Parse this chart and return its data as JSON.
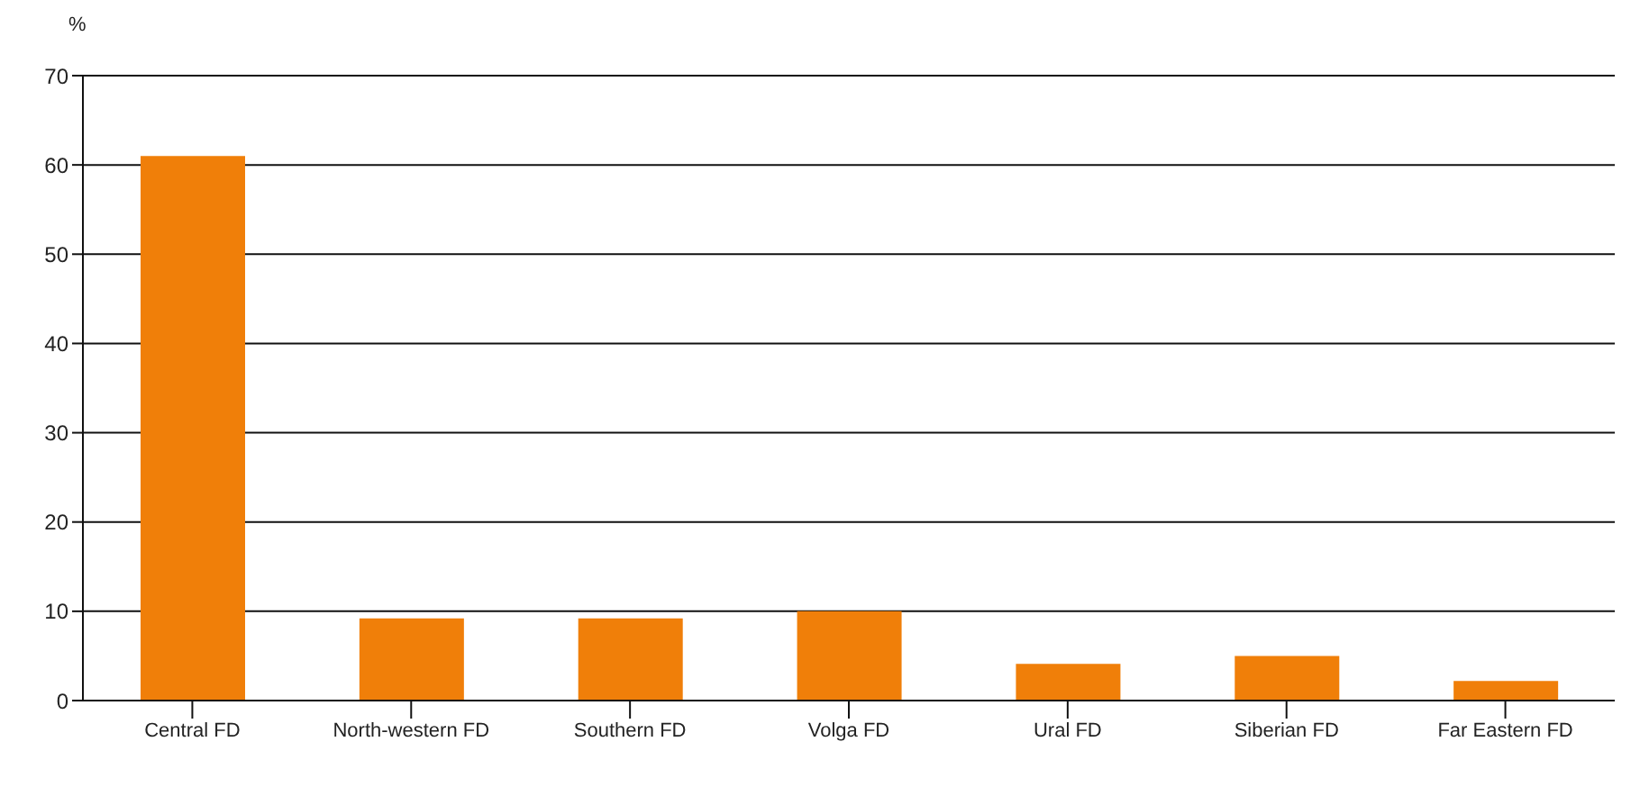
{
  "chart_data": {
    "type": "bar",
    "ylabel": "%",
    "categories": [
      "Central FD",
      "North-western FD",
      "Southern FD",
      "Volga FD",
      "Ural FD",
      "Siberian FD",
      "Far Eastern FD"
    ],
    "values": [
      61,
      9.2,
      9.2,
      10,
      4.1,
      5,
      2.2
    ],
    "color": "#f07f09",
    "ylim": [
      0,
      70
    ],
    "yticks": [
      0,
      10,
      20,
      30,
      40,
      50,
      60,
      70
    ],
    "grid": "y"
  }
}
